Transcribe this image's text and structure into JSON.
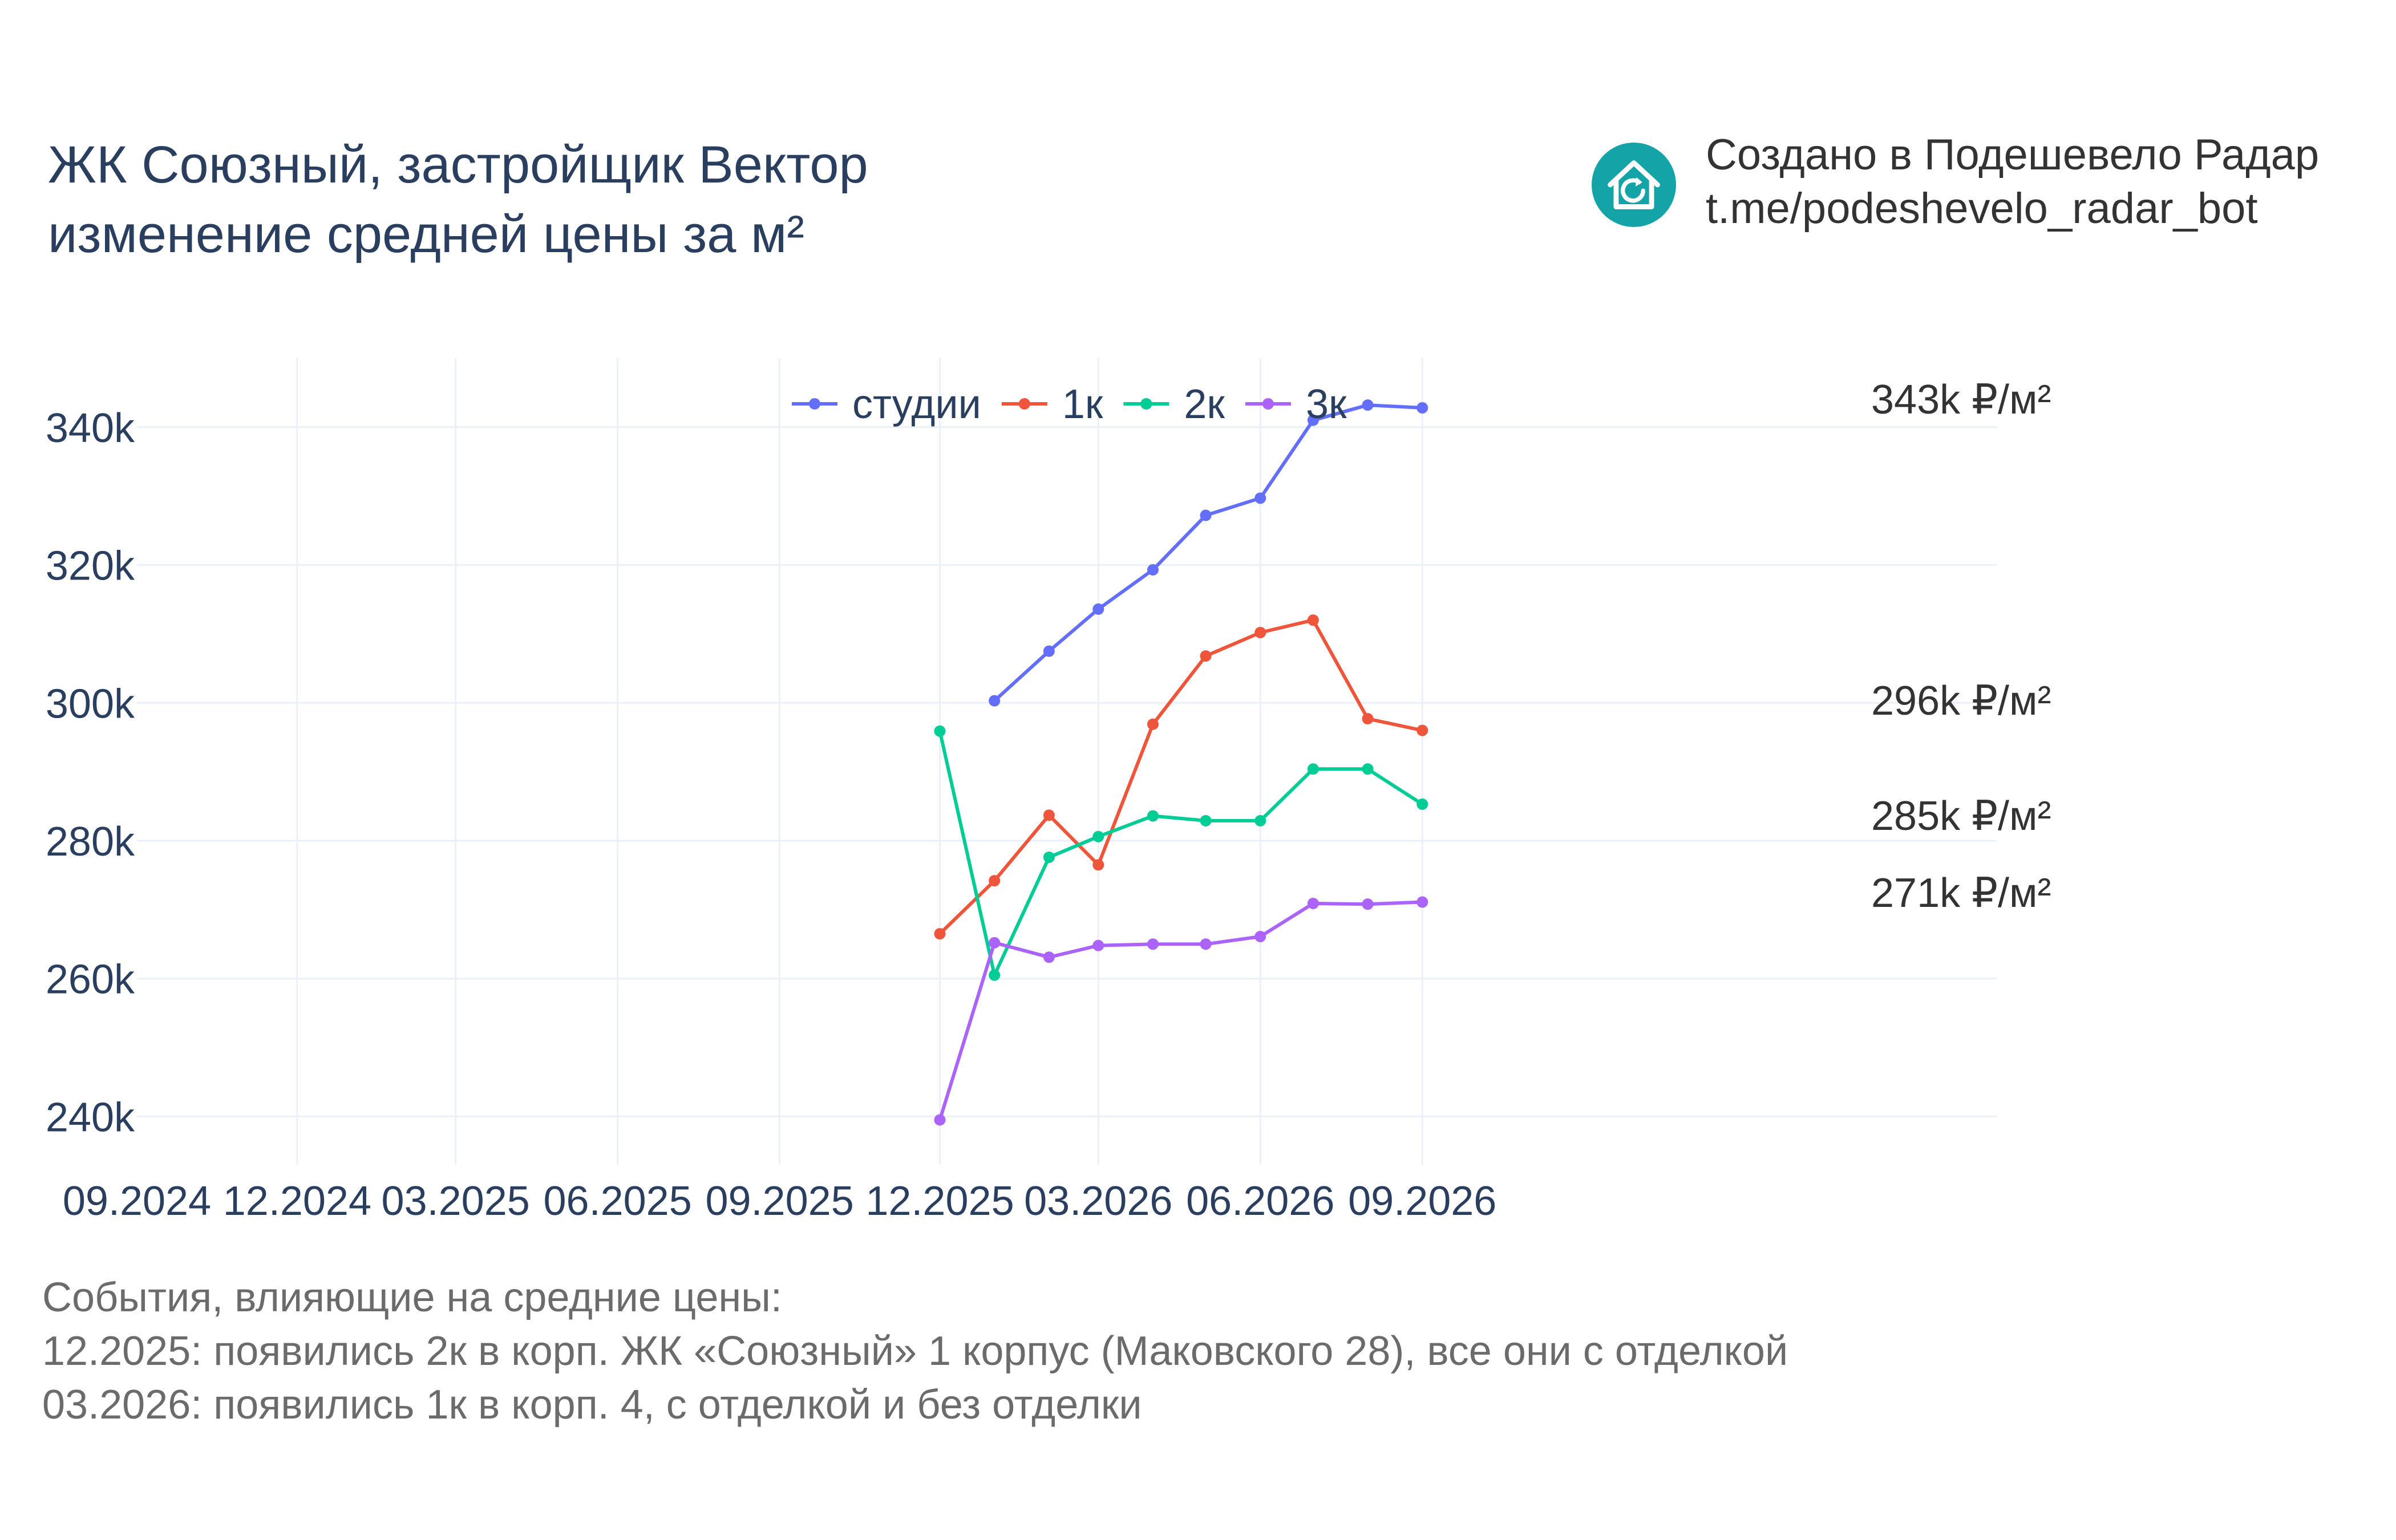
{
  "header": {
    "title_line1": "ЖК Союзный, застройщик Вектор",
    "title_line2": "изменение средней цены за м²"
  },
  "credit": {
    "line1": "Создано в Подешевело Радар",
    "line2": "t.me/podeshevelo_radar_bot",
    "logo_icon": "house-refresh-icon",
    "logo_color": "#14a3a6"
  },
  "notes": {
    "heading": "События, влияющие на средние цены:",
    "items": [
      "12.2025: появились 2к в корп. ЖК «Союзный» 1 корпус (Маковского 28), все они с отделкой",
      "03.2026: появились 1к в корп. 4, с отделкой и без отделки"
    ]
  },
  "chart_data": {
    "type": "line",
    "title": "ЖК Союзный, застройщик Вектор изменение средней цены за м²",
    "xlabel": "",
    "ylabel": "",
    "x_ticks": [
      "09.2024",
      "12.2024",
      "03.2025",
      "06.2025",
      "09.2025",
      "12.2025",
      "03.2026",
      "06.2026",
      "09.2026"
    ],
    "y_ticks": [
      "240k",
      "260k",
      "280k",
      "300k",
      "320k",
      "340k"
    ],
    "xlim": [
      "2024-09",
      "2026-11"
    ],
    "ylim": [
      233000,
      350000
    ],
    "grid": true,
    "legend_position": "top-center",
    "series": [
      {
        "name": "студии",
        "color": "#636efa",
        "end_label": "343k ₽/м²",
        "points": [
          {
            "x": "2026-01",
            "y": 300300
          },
          {
            "x": "2026-02",
            "y": 307500
          },
          {
            "x": "2026-03",
            "y": 313600
          },
          {
            "x": "2026-04",
            "y": 319300
          },
          {
            "x": "2026-05",
            "y": 327200
          },
          {
            "x": "2026-06",
            "y": 329700
          },
          {
            "x": "2026-07",
            "y": 341000
          },
          {
            "x": "2026-08",
            "y": 343200
          },
          {
            "x": "2026-09",
            "y": 342800
          }
        ]
      },
      {
        "name": "1к",
        "color": "#ef553b",
        "end_label": "296k ₽/м²",
        "points": [
          {
            "x": "2025-12",
            "y": 266500
          },
          {
            "x": "2026-01",
            "y": 274200
          },
          {
            "x": "2026-02",
            "y": 283700
          },
          {
            "x": "2026-03",
            "y": 276500
          },
          {
            "x": "2026-04",
            "y": 296900
          },
          {
            "x": "2026-05",
            "y": 306800
          },
          {
            "x": "2026-06",
            "y": 310200
          },
          {
            "x": "2026-07",
            "y": 312000
          },
          {
            "x": "2026-08",
            "y": 297700
          },
          {
            "x": "2026-09",
            "y": 296000
          }
        ]
      },
      {
        "name": "2к",
        "color": "#00cc96",
        "end_label": "285k ₽/м²",
        "points": [
          {
            "x": "2025-12",
            "y": 295900
          },
          {
            "x": "2026-01",
            "y": 260500
          },
          {
            "x": "2026-02",
            "y": 277600
          },
          {
            "x": "2026-03",
            "y": 280600
          },
          {
            "x": "2026-04",
            "y": 283600
          },
          {
            "x": "2026-05",
            "y": 282900
          },
          {
            "x": "2026-06",
            "y": 282900
          },
          {
            "x": "2026-07",
            "y": 290400
          },
          {
            "x": "2026-08",
            "y": 290400
          },
          {
            "x": "2026-09",
            "y": 285300
          }
        ]
      },
      {
        "name": "3к",
        "color": "#ab63fa",
        "end_label": "271k ₽/м²",
        "points": [
          {
            "x": "2025-12",
            "y": 239500
          },
          {
            "x": "2026-01",
            "y": 265200
          },
          {
            "x": "2026-02",
            "y": 263100
          },
          {
            "x": "2026-03",
            "y": 264800
          },
          {
            "x": "2026-04",
            "y": 265000
          },
          {
            "x": "2026-05",
            "y": 265000
          },
          {
            "x": "2026-06",
            "y": 266100
          },
          {
            "x": "2026-07",
            "y": 270900
          },
          {
            "x": "2026-08",
            "y": 270800
          },
          {
            "x": "2026-09",
            "y": 271100
          }
        ]
      }
    ]
  }
}
